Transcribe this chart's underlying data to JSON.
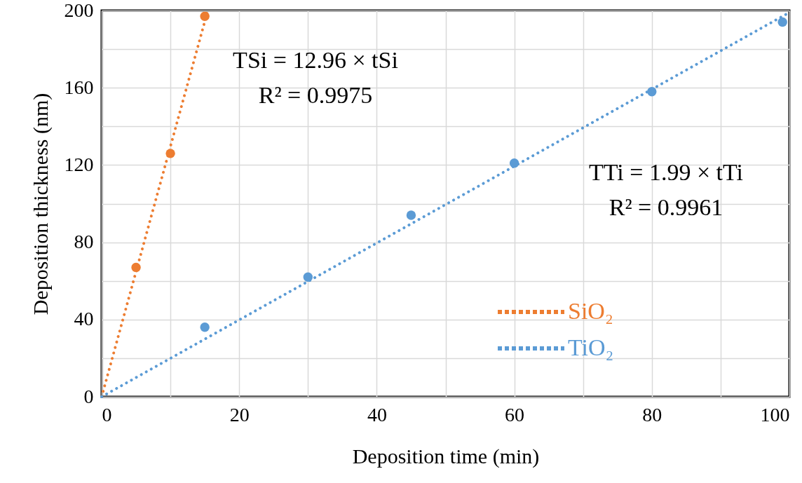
{
  "chart_data": {
    "type": "scatter",
    "xlabel": "Deposition time (min)",
    "ylabel": "Deposition thickness (nm)",
    "xlim": [
      0,
      100
    ],
    "ylim": [
      0,
      200
    ],
    "xticks": [
      0,
      {
        "value": 10,
        "label": null
      },
      20,
      {
        "value": 30,
        "label": null
      },
      40,
      {
        "value": 50,
        "label": null
      },
      60,
      {
        "value": 70,
        "label": null
      },
      80,
      {
        "value": 90,
        "label": null
      },
      100
    ],
    "yticks": [
      0,
      {
        "value": 20,
        "label": null
      },
      40,
      {
        "value": 60,
        "label": null
      },
      80,
      {
        "value": 100,
        "label": null
      },
      120,
      {
        "value": 140,
        "label": null
      },
      160,
      {
        "value": 180,
        "label": null
      },
      200
    ],
    "grid": true,
    "legend": "bottom",
    "series": [
      {
        "type": "line",
        "name": "SiO₂",
        "color": "#ed7d31",
        "x": [
          0,
          15.4
        ],
        "values": [
          0,
          199.6
        ],
        "marker": "none",
        "line_style": "dotted"
      },
      {
        "type": "line",
        "name": "TiO₂",
        "color": "#5b9bd5",
        "x": [
          0,
          100
        ],
        "values": [
          0,
          199
        ],
        "marker": "none",
        "line_style": "dotted"
      },
      {
        "color": "#ed7d31",
        "x": [
          5,
          10,
          15
        ],
        "values": [
          67,
          126,
          197
        ],
        "marker": "circle"
      },
      {
        "color": "#5b9bd5",
        "x": [
          15,
          30,
          45,
          60,
          80,
          99
        ],
        "values": [
          36,
          62,
          94,
          121,
          158,
          194
        ],
        "marker": "circle"
      }
    ],
    "annotations": [
      "TSi = 12.96 × tSi",
      "R² = 0.9975",
      "TTi = 1.99 × tTi",
      "R² = 0.9961"
    ]
  }
}
